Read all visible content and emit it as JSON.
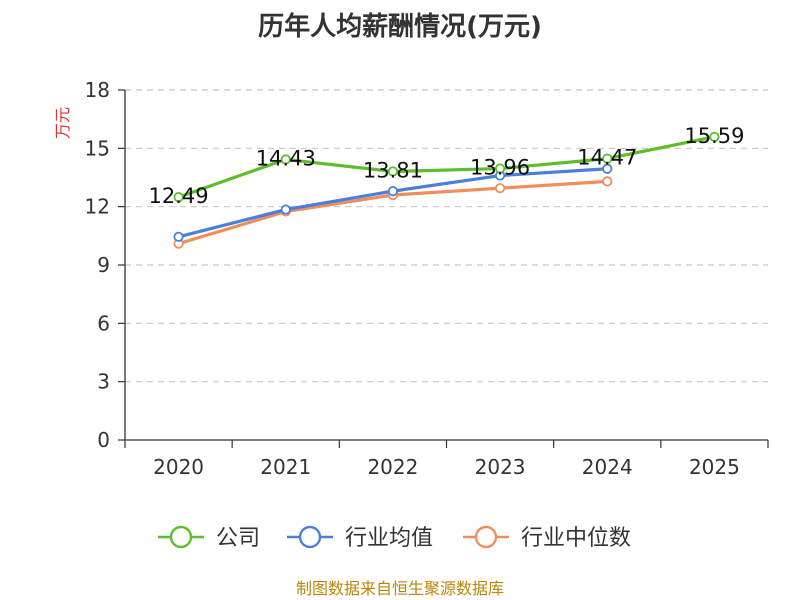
{
  "chart_data": {
    "type": "line",
    "title": "历年人均薪酬情况(万元)",
    "ylabel": "万元",
    "xlabel": "",
    "ylim": [
      0,
      18
    ],
    "yticks": [
      0,
      3,
      6,
      9,
      12,
      15,
      18
    ],
    "categories": [
      "2020",
      "2021",
      "2022",
      "2023",
      "2024",
      "2025"
    ],
    "grid": true,
    "legend_position": "bottom",
    "series": [
      {
        "name": "公司",
        "color": "#5dbe2a",
        "values": [
          12.49,
          14.43,
          13.81,
          13.96,
          14.47,
          15.59
        ],
        "labels": [
          "12.49",
          "14.43",
          "13.81",
          "13.96",
          "14.47",
          "15.59"
        ]
      },
      {
        "name": "行业均值",
        "color": "#4a7fdc",
        "values": [
          10.45,
          11.85,
          12.8,
          13.6,
          13.95,
          null
        ]
      },
      {
        "name": "行业中位数",
        "color": "#f28c5a",
        "values": [
          10.1,
          11.75,
          12.6,
          12.95,
          13.3,
          null
        ]
      }
    ]
  },
  "source": "制图数据来自恒生聚源数据库"
}
